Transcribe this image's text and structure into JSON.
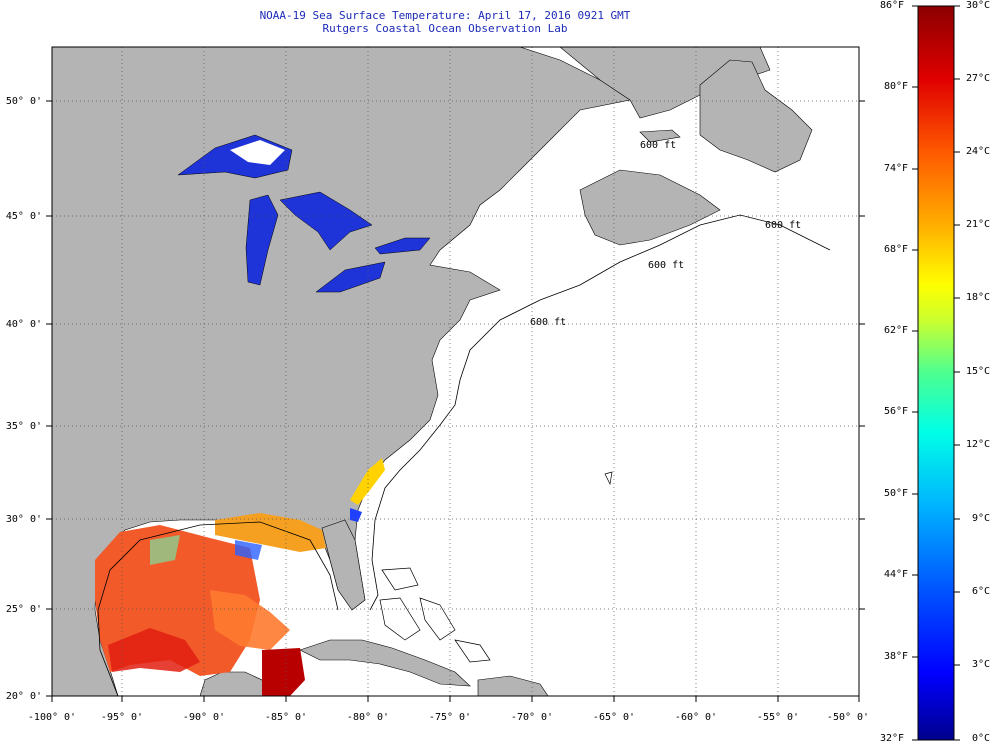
{
  "title": {
    "line1": "NOAA-19 Sea Surface Temperature:  April 17, 2016 0921 GMT",
    "line2": "Rutgers Coastal Ocean Observation Lab"
  },
  "map": {
    "lon_range": [
      -100,
      -50
    ],
    "lat_range": [
      20,
      52.5
    ],
    "lon_ticks": [
      "-100° 0'",
      "-95° 0'",
      "-90° 0'",
      "-85° 0'",
      "-80° 0'",
      "-75° 0'",
      "-70° 0'",
      "-65° 0'",
      "-60° 0'",
      "-55° 0'",
      "-50° 0'"
    ],
    "lat_ticks": [
      "50° 0'",
      "45° 0'",
      "40° 0'",
      "35° 0'",
      "30° 0'",
      "25° 0'",
      "20° 0'"
    ],
    "contour_label": "600 ft",
    "colors": {
      "land": "#b4b4b4",
      "ocean_no_data": "#ffffff",
      "grid": "#555555"
    }
  },
  "colorbar": {
    "fahrenheit_labels": [
      "86°F",
      "80°F",
      "74°F",
      "68°F",
      "62°F",
      "56°F",
      "50°F",
      "44°F",
      "38°F",
      "32°F"
    ],
    "celsius_labels": [
      "30°C",
      "27°C",
      "24°C",
      "21°C",
      "18°C",
      "15°C",
      "12°C",
      "9°C",
      "6°C",
      "3°C",
      "0°C"
    ],
    "range_c": [
      0,
      30
    ],
    "range_f": [
      32,
      86
    ],
    "colors": [
      "#00008c",
      "#0000ff",
      "#0050ff",
      "#00b4ff",
      "#00ffe6",
      "#4cff90",
      "#c8ff30",
      "#ffff00",
      "#ffb000",
      "#ff5a00",
      "#e00000",
      "#8c0000"
    ]
  }
}
